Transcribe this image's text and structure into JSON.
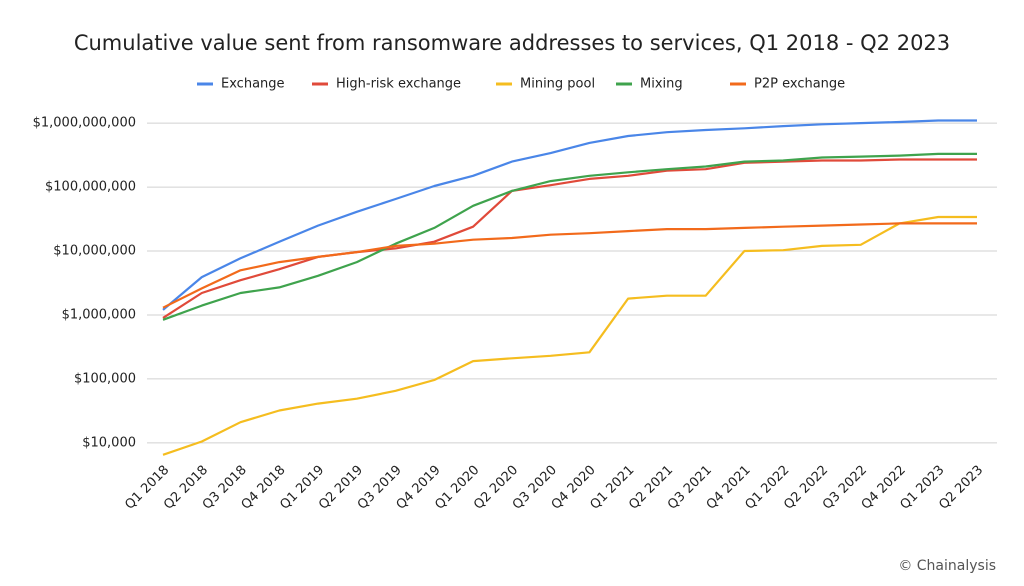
{
  "chart_data": {
    "type": "line",
    "title": "Cumulative value sent from ransomware addresses to services, Q1 2018 - Q2 2023",
    "source": "© Chainalysis",
    "log_scale": true,
    "grid": true,
    "legend": "top",
    "categories": [
      "Q1 2018",
      "Q2 2018",
      "Q3 2018",
      "Q4 2018",
      "Q1 2019",
      "Q2 2019",
      "Q3 2019",
      "Q4 2019",
      "Q1 2020",
      "Q2 2020",
      "Q3 2020",
      "Q4 2020",
      "Q1 2021",
      "Q2 2021",
      "Q3 2021",
      "Q4 2021",
      "Q1 2022",
      "Q2 2022",
      "Q3 2022",
      "Q4 2022",
      "Q1 2023",
      "Q2 2023"
    ],
    "ylim": [
      6000,
      2300000000
    ],
    "yticks": [
      {
        "value": 10000,
        "label": "$10,000"
      },
      {
        "value": 100000,
        "label": "$100,000"
      },
      {
        "value": 1000000,
        "label": "$1,000,000"
      },
      {
        "value": 10000000,
        "label": "$10,000,000"
      },
      {
        "value": 100000000,
        "label": "$100,000,000"
      },
      {
        "value": 1000000000,
        "label": "$1,000,000,000"
      }
    ],
    "series": [
      {
        "name": "Exchange",
        "color": "#4a86e8",
        "values": [
          1200000,
          3900000,
          7700000,
          14000000,
          25000000,
          41000000,
          65000000,
          104000000,
          150000000,
          250000000,
          340000000,
          490000000,
          630000000,
          720000000,
          780000000,
          830000000,
          900000000,
          960000000,
          1000000000,
          1040000000,
          1100000000,
          1100000000
        ]
      },
      {
        "name": "High-risk exchange",
        "color": "#e04a3a",
        "values": [
          900000,
          2200000,
          3500000,
          5200000,
          8100000,
          9600000,
          11000000,
          14000000,
          24000000,
          87000000,
          107000000,
          134000000,
          150000000,
          180000000,
          190000000,
          240000000,
          250000000,
          260000000,
          260000000,
          270000000,
          270000000,
          270000000
        ]
      },
      {
        "name": "Mining pool",
        "color": "#f5bd1f",
        "values": [
          6500,
          10500,
          21000,
          32000,
          41000,
          49000,
          65000,
          96000,
          190000,
          210000,
          230000,
          260000,
          1800000,
          2000000,
          2000000,
          10000000,
          10300000,
          12000000,
          12500000,
          27000000,
          34000000,
          34000000
        ]
      },
      {
        "name": "Mixing",
        "color": "#3fa34d",
        "values": [
          840000,
          1400000,
          2200000,
          2700000,
          4100000,
          6700000,
          13000000,
          23000000,
          51000000,
          87000000,
          124000000,
          150000000,
          170000000,
          190000000,
          210000000,
          250000000,
          260000000,
          290000000,
          300000000,
          310000000,
          330000000,
          330000000
        ]
      },
      {
        "name": "P2P exchange",
        "color": "#f26a1b",
        "values": [
          1300000,
          2600000,
          5000000,
          6700000,
          8100000,
          9600000,
          12000000,
          13000000,
          15000000,
          16000000,
          18000000,
          19000000,
          20500000,
          22000000,
          22000000,
          23000000,
          24000000,
          25000000,
          26000000,
          27000000,
          27000000,
          27000000
        ]
      }
    ]
  }
}
